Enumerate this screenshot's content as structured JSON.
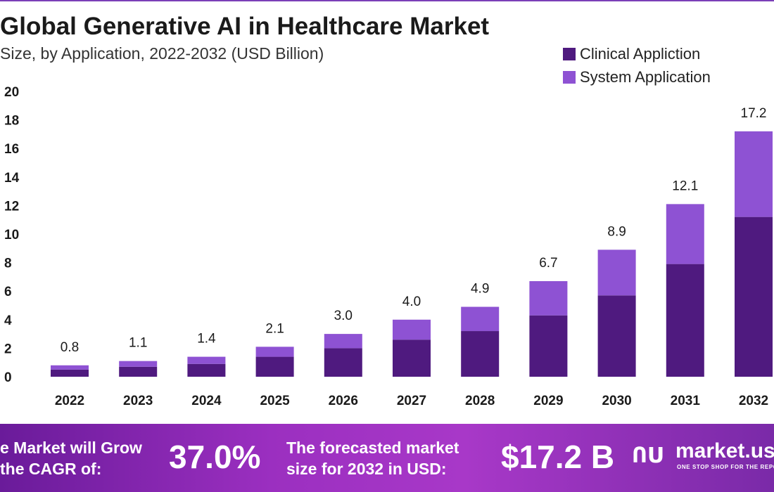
{
  "chart_data": {
    "type": "bar",
    "stacked": true,
    "title": "Global Generative AI in Healthcare Market",
    "subtitle": "Size, by Application, 2022-2032 (USD Billion)",
    "categories": [
      "2022",
      "2023",
      "2024",
      "2025",
      "2026",
      "2027",
      "2028",
      "2029",
      "2030",
      "2031",
      "2032"
    ],
    "series": [
      {
        "name": "Clinical Appliction",
        "color": "#4f1a7f",
        "values": [
          0.5,
          0.7,
          0.9,
          1.4,
          2.0,
          2.6,
          3.2,
          4.3,
          5.7,
          7.9,
          11.2
        ]
      },
      {
        "name": "System Application",
        "color": "#8e52d3",
        "values": [
          0.3,
          0.4,
          0.5,
          0.7,
          1.0,
          1.4,
          1.7,
          2.4,
          3.2,
          4.2,
          6.0
        ]
      }
    ],
    "totals_labels": [
      "0.8",
      "1.1",
      "1.4",
      "2.1",
      "3.0",
      "4.0",
      "4.9",
      "6.7",
      "8.9",
      "12.1",
      "17.2"
    ],
    "y_ticks": [
      "0",
      "2",
      "4",
      "6",
      "8",
      "10",
      "12",
      "14",
      "16",
      "18",
      "20"
    ],
    "ylim": [
      0,
      20
    ],
    "xlabel": "",
    "ylabel": "",
    "grid": false,
    "legend_position": "top-right"
  },
  "footer": {
    "cagr_text_line1": "e Market will Grow",
    "cagr_text_line2": "the CAGR of:",
    "cagr_value": "37.0%",
    "forecast_text_line1": "The forecasted market",
    "forecast_text_line2": "size for 2032 in USD:",
    "forecast_value": "$17.2 B",
    "logo_mark": "ՈՍ",
    "logo_name": "market.us",
    "logo_tagline": "ONE STOP SHOP FOR THE REPORTS"
  }
}
